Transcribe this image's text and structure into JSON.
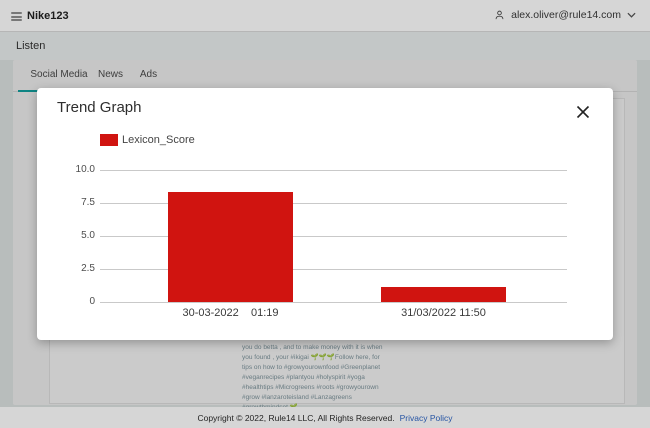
{
  "header": {
    "brand": "Nike123",
    "user_email": "alex.oliver@rule14.com"
  },
  "page": {
    "title": "Listen"
  },
  "tabs": [
    {
      "label": "Social Media",
      "active": true
    },
    {
      "label": "News",
      "active": false
    },
    {
      "label": "Ads",
      "active": false
    }
  ],
  "post": {
    "lines": [
      "you do betta , and to make money with it is when",
      "you found , your #ikigai 🌱🌱🌱Follow here, for",
      "tips on how to #growyourownfood #Greenplanet",
      "#veganrecipes #plantyou #holyspirit #yoga",
      "#healthtips #Microgreens #roots #growyourown",
      "#grow #lanzaroteisland #Lanzagreens",
      "#growthmindset 🌱"
    ]
  },
  "modal": {
    "title": "Trend Graph"
  },
  "chart_data": {
    "type": "bar",
    "title": "Trend Graph",
    "categories": [
      "30-03-2022    01:19",
      "31/03/2022 11:50"
    ],
    "series": [
      {
        "name": "Lexicon_Score",
        "values": [
          8.3,
          1.1
        ]
      }
    ],
    "legend": [
      "Lexicon_Score"
    ],
    "legend_position": "top",
    "xlabel": "",
    "ylabel": "",
    "ylim": [
      0,
      10
    ],
    "yticks": [
      "10.0",
      "7.5",
      "5.0",
      "2.5",
      "0"
    ],
    "grid": true
  },
  "footer": {
    "copyright": "Copyright © 2022, Rule14 LLC, All Rights Reserved.",
    "privacy_link": "Privacy Policy"
  },
  "colors": {
    "bar_red": "#d01410",
    "accent_teal": "#119e9d",
    "link_blue": "#2f66c4"
  }
}
